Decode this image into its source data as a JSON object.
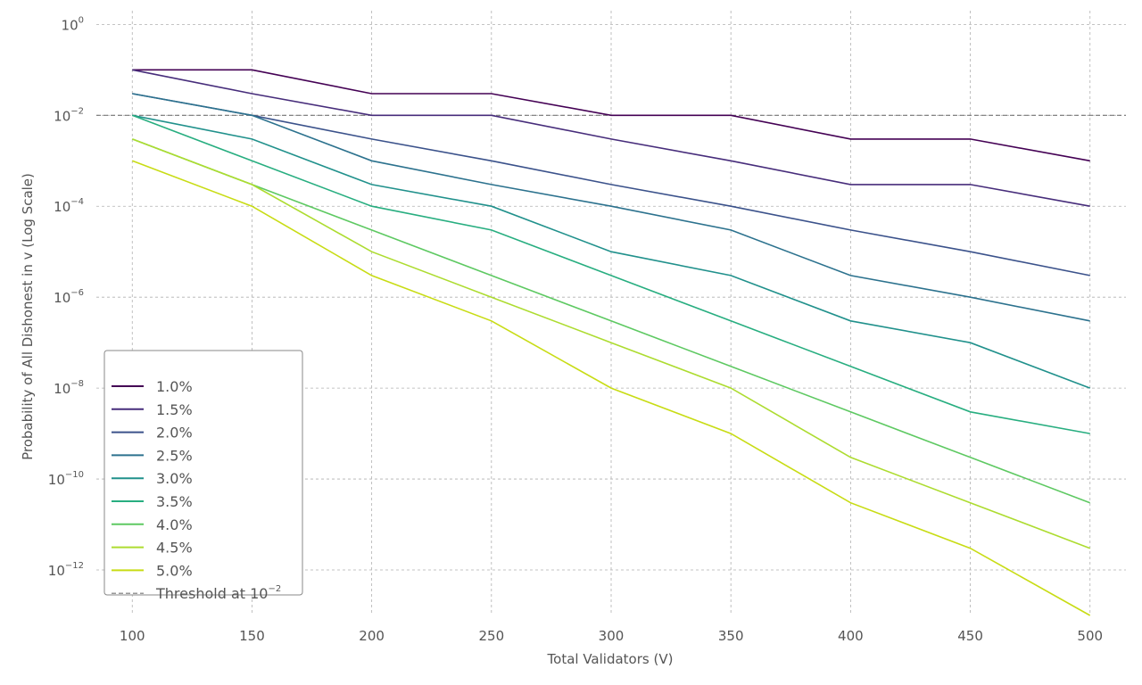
{
  "chart_data": {
    "type": "line",
    "xlabel": "Total Validators (V)",
    "ylabel": "Probability of All Dishonest in v (Log Scale)",
    "x_scale": "linear",
    "y_scale": "log",
    "xlim": [
      85,
      515
    ],
    "ylim": [
      1e-13,
      2
    ],
    "grid": true,
    "legend_position": "lower-left",
    "x": [
      100,
      150,
      200,
      250,
      300,
      350,
      400,
      450,
      500
    ],
    "x_tick_labels": [
      "100",
      "150",
      "200",
      "250",
      "300",
      "350",
      "400",
      "450",
      "500"
    ],
    "y_ticks": [
      {
        "value": 1,
        "base": "10",
        "exp": "0"
      },
      {
        "value": 0.01,
        "base": "10",
        "exp": "−2"
      },
      {
        "value": 0.0001,
        "base": "10",
        "exp": "−4"
      },
      {
        "value": 1e-06,
        "base": "10",
        "exp": "−6"
      },
      {
        "value": 1e-08,
        "base": "10",
        "exp": "−8"
      },
      {
        "value": 1e-10,
        "base": "10",
        "exp": "−10"
      },
      {
        "value": 1e-12,
        "base": "10",
        "exp": "−12"
      }
    ],
    "series": [
      {
        "name": "1.0%",
        "color": "#440154",
        "values": [
          0.1,
          0.1,
          0.03,
          0.03,
          0.01,
          0.01,
          0.003,
          0.003,
          0.001
        ]
      },
      {
        "name": "1.5%",
        "color": "#472d7b",
        "values": [
          0.1,
          0.03,
          0.01,
          0.01,
          0.003,
          0.001,
          0.0003,
          0.0003,
          0.0001
        ]
      },
      {
        "name": "2.0%",
        "color": "#3b528b",
        "values": [
          0.03,
          0.01,
          0.003,
          0.001,
          0.0003,
          0.0001,
          3e-05,
          1e-05,
          3e-06
        ]
      },
      {
        "name": "2.5%",
        "color": "#2c728e",
        "values": [
          0.03,
          0.01,
          0.001,
          0.0003,
          0.0001,
          3e-05,
          3e-06,
          1e-06,
          3e-07
        ]
      },
      {
        "name": "3.0%",
        "color": "#21918c",
        "values": [
          0.01,
          0.003,
          0.0003,
          0.0001,
          1e-05,
          3e-06,
          3e-07,
          1e-07,
          1e-08
        ]
      },
      {
        "name": "3.5%",
        "color": "#28ae80",
        "values": [
          0.01,
          0.001,
          0.0001,
          3e-05,
          3e-06,
          3e-07,
          3e-08,
          3e-09,
          1e-09
        ]
      },
      {
        "name": "4.0%",
        "color": "#5ec962",
        "values": [
          0.003,
          0.0003,
          3e-05,
          3e-06,
          3e-07,
          3e-08,
          3e-09,
          3e-10,
          3e-11
        ]
      },
      {
        "name": "4.5%",
        "color": "#addc30",
        "values": [
          0.003,
          0.0003,
          1e-05,
          1e-06,
          1e-07,
          1e-08,
          3e-10,
          3e-11,
          3e-12
        ]
      },
      {
        "name": "5.0%",
        "color": "#c8dc14",
        "values": [
          0.001,
          0.0001,
          3e-06,
          3e-07,
          1e-08,
          1e-09,
          3e-11,
          3e-12,
          1e-13
        ]
      }
    ],
    "threshold": {
      "value": 0.01,
      "label_text": "Threshold at ",
      "label_base": "10",
      "label_exp": "−2",
      "color": "#777777"
    }
  }
}
